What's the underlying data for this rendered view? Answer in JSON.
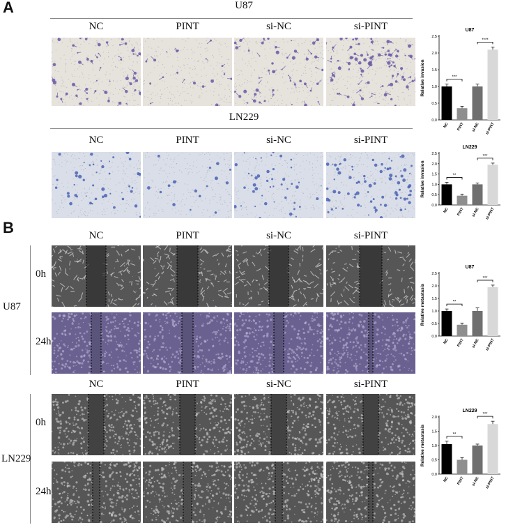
{
  "panelA": {
    "letter": "A",
    "u87": {
      "title": "U87",
      "groups": [
        "NC",
        "PINT",
        "si-NC",
        "si-PINT"
      ]
    },
    "ln229": {
      "title": "LN229",
      "groups": [
        "NC",
        "PINT",
        "si-NC",
        "si-PINT"
      ]
    }
  },
  "panelB": {
    "letter": "B",
    "groups_top": [
      "NC",
      "PINT",
      "si-NC",
      "si-PINT"
    ],
    "groups_bottom": [
      "NC",
      "PINT",
      "si-NC",
      "si-PINT"
    ],
    "cell_u87": "U87",
    "cell_ln229": "LN229",
    "time0": "0h",
    "time24": "24h"
  },
  "colors": {
    "invasion_u87": "#6a5aa6",
    "invasion_ln229": "#4a63b5",
    "wound": "#8c8c8c",
    "wound_u87_24h": "#6a6190",
    "bar_nc": "#000000",
    "bar_pint": "#8e8e8e",
    "bar_sinc": "#6f6f6f",
    "bar_sipint": "#d8d8d8"
  },
  "chart_data": [
    {
      "type": "bar",
      "title": "U87",
      "ylabel": "Relative invasion",
      "categories": [
        "NC",
        "PINT",
        "si-NC",
        "si-PINT"
      ],
      "values": [
        1.0,
        0.35,
        1.0,
        2.1
      ],
      "errors": [
        0.07,
        0.06,
        0.07,
        0.08
      ],
      "ylim": [
        0,
        2.5
      ],
      "yticks": [
        "0.0",
        "0.5",
        "1.0",
        "1.5",
        "2.0",
        "2.5"
      ],
      "significance": [
        {
          "between": [
            0,
            1
          ],
          "label": "***"
        },
        {
          "between": [
            2,
            3
          ],
          "label": "****"
        }
      ]
    },
    {
      "type": "bar",
      "title": "LN229",
      "ylabel": "Relative invasion",
      "categories": [
        "NC",
        "PINT",
        "si-NC",
        "si-PINT"
      ],
      "values": [
        1.0,
        0.45,
        1.0,
        1.95
      ],
      "errors": [
        0.1,
        0.08,
        0.07,
        0.08
      ],
      "ylim": [
        0,
        2.5
      ],
      "yticks": [
        "0.0",
        "0.5",
        "1.0",
        "1.5",
        "2.0",
        "2.5"
      ],
      "significance": [
        {
          "between": [
            0,
            1
          ],
          "label": "**"
        },
        {
          "between": [
            2,
            3
          ],
          "label": "***"
        }
      ]
    },
    {
      "type": "bar",
      "title": "U87",
      "ylabel": "Relative metastasis",
      "categories": [
        "NC",
        "PINT",
        "si-NC",
        "si-PINT"
      ],
      "values": [
        1.0,
        0.45,
        1.0,
        1.95
      ],
      "errors": [
        0.08,
        0.07,
        0.12,
        0.08
      ],
      "ylim": [
        0,
        2.5
      ],
      "yticks": [
        "0.0",
        "0.5",
        "1.0",
        "1.5",
        "2.0",
        "2.5"
      ],
      "significance": [
        {
          "between": [
            0,
            1
          ],
          "label": "**"
        },
        {
          "between": [
            2,
            3
          ],
          "label": "***"
        }
      ]
    },
    {
      "type": "bar",
      "title": "LN229",
      "ylabel": "Relative metastasis",
      "categories": [
        "NC",
        "PINT",
        "si-NC",
        "si-PINT"
      ],
      "values": [
        1.05,
        0.5,
        1.0,
        1.75
      ],
      "errors": [
        0.1,
        0.08,
        0.05,
        0.1
      ],
      "ylim": [
        0,
        2.0
      ],
      "yticks": [
        "0.0",
        "0.5",
        "1.0",
        "1.5",
        "2.0"
      ],
      "significance": [
        {
          "between": [
            0,
            1
          ],
          "label": "**"
        },
        {
          "between": [
            2,
            3
          ],
          "label": "***"
        }
      ]
    }
  ]
}
